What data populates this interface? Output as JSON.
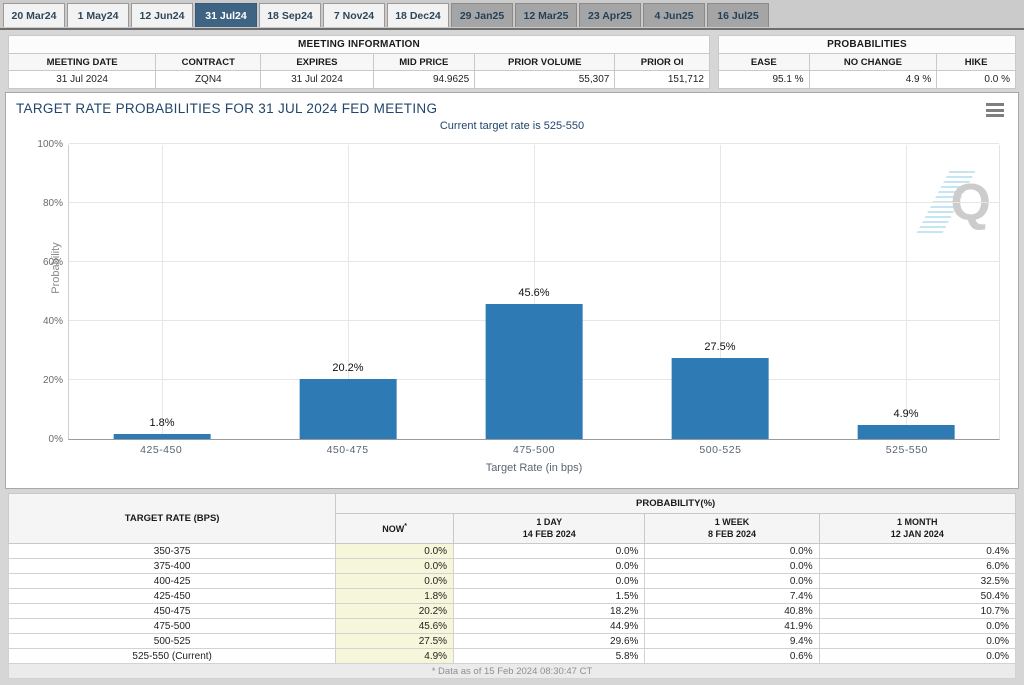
{
  "tabs": [
    {
      "label": "20 Mar24",
      "active": false,
      "group": "near"
    },
    {
      "label": "1 May24",
      "active": false,
      "group": "near"
    },
    {
      "label": "12 Jun24",
      "active": false,
      "group": "near"
    },
    {
      "label": "31 Jul24",
      "active": true,
      "group": "near"
    },
    {
      "label": "18 Sep24",
      "active": false,
      "group": "near"
    },
    {
      "label": "7 Nov24",
      "active": false,
      "group": "near"
    },
    {
      "label": "18 Dec24",
      "active": false,
      "group": "near"
    },
    {
      "label": "29 Jan25",
      "active": false,
      "group": "far"
    },
    {
      "label": "12 Mar25",
      "active": false,
      "group": "far"
    },
    {
      "label": "23 Apr25",
      "active": false,
      "group": "far"
    },
    {
      "label": "4 Jun25",
      "active": false,
      "group": "far"
    },
    {
      "label": "16 Jul25",
      "active": false,
      "group": "far"
    }
  ],
  "meeting_info": {
    "title": "MEETING INFORMATION",
    "headers": [
      "MEETING DATE",
      "CONTRACT",
      "EXPIRES",
      "MID PRICE",
      "PRIOR VOLUME",
      "PRIOR OI"
    ],
    "values": [
      "31 Jul 2024",
      "ZQN4",
      "31 Jul 2024",
      "94.9625",
      "55,307",
      "151,712"
    ]
  },
  "probabilities_summary": {
    "title": "PROBABILITIES",
    "headers": [
      "EASE",
      "NO CHANGE",
      "HIKE"
    ],
    "values": [
      "95.1 %",
      "4.9 %",
      "0.0 %"
    ]
  },
  "chart_panel": {
    "title": "TARGET RATE PROBABILITIES FOR 31 JUL 2024 FED MEETING",
    "subtitle": "Current target rate is 525-550",
    "menu_icon": "hamburger-menu",
    "watermark": "Q"
  },
  "chart_data": {
    "type": "bar",
    "title": "TARGET RATE PROBABILITIES FOR 31 JUL 2024 FED MEETING",
    "subtitle": "Current target rate is 525-550",
    "categories": [
      "425-450",
      "450-475",
      "475-500",
      "500-525",
      "525-550"
    ],
    "values": [
      1.8,
      20.2,
      45.6,
      27.5,
      4.9
    ],
    "bar_labels": [
      "1.8%",
      "20.2%",
      "45.6%",
      "27.5%",
      "4.9%"
    ],
    "xlabel": "Target Rate (in bps)",
    "ylabel": "Probability",
    "ylim": [
      0,
      100
    ],
    "yticks": [
      "0%",
      "20%",
      "40%",
      "60%",
      "80%",
      "100%"
    ],
    "bar_color": "#2d7ab4",
    "grid": true,
    "legend": false
  },
  "probability_table": {
    "col1_header": "TARGET RATE (BPS)",
    "group_header": "PROBABILITY(%)",
    "col_headers": [
      {
        "line1": "NOW",
        "sup": "*",
        "line2": ""
      },
      {
        "line1": "1 DAY",
        "sup": "",
        "line2": "14 FEB 2024"
      },
      {
        "line1": "1 WEEK",
        "sup": "",
        "line2": "8 FEB 2024"
      },
      {
        "line1": "1 MONTH",
        "sup": "",
        "line2": "12 JAN 2024"
      }
    ],
    "rows": [
      {
        "rate": "350-375",
        "values": [
          "0.0%",
          "0.0%",
          "0.0%",
          "0.4%"
        ]
      },
      {
        "rate": "375-400",
        "values": [
          "0.0%",
          "0.0%",
          "0.0%",
          "6.0%"
        ]
      },
      {
        "rate": "400-425",
        "values": [
          "0.0%",
          "0.0%",
          "0.0%",
          "32.5%"
        ]
      },
      {
        "rate": "425-450",
        "values": [
          "1.8%",
          "1.5%",
          "7.4%",
          "50.4%"
        ]
      },
      {
        "rate": "450-475",
        "values": [
          "20.2%",
          "18.2%",
          "40.8%",
          "10.7%"
        ]
      },
      {
        "rate": "475-500",
        "values": [
          "45.6%",
          "44.9%",
          "41.9%",
          "0.0%"
        ]
      },
      {
        "rate": "500-525",
        "values": [
          "27.5%",
          "29.6%",
          "9.4%",
          "0.0%"
        ]
      },
      {
        "rate": "525-550 (Current)",
        "values": [
          "4.9%",
          "5.8%",
          "0.6%",
          "0.0%"
        ]
      }
    ],
    "footnote": "* Data as of 15 Feb 2024 08:30:47 CT"
  },
  "colors": {
    "bar": "#2d7ab4",
    "active_tab": "#3f6382",
    "now_column_bg": "#f6f6da",
    "title_text": "#22456b"
  }
}
